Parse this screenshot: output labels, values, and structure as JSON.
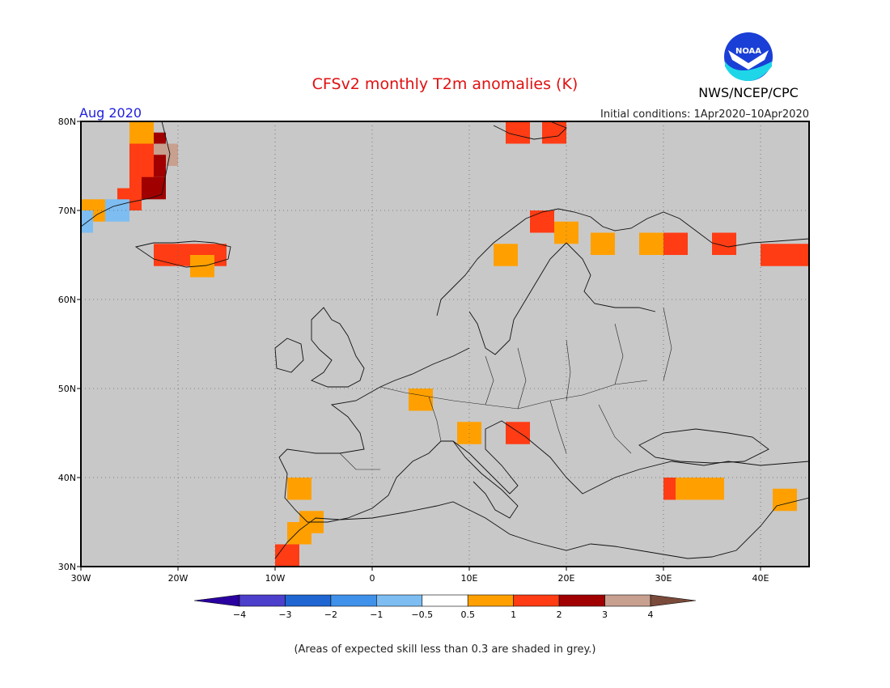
{
  "title": "CFSv2 monthly T2m anomalies (K)",
  "month": "Aug 2020",
  "initial_conditions": "Initial conditions: 1Apr2020–10Apr2020",
  "agency": "NWS/NCEP/CPC",
  "logo_text": "NOAA",
  "footnote": "(Areas of expected skill less than 0.3 are shaded in grey.)",
  "map": {
    "lon_range": [
      -30,
      45
    ],
    "lat_range": [
      30,
      80
    ],
    "skill_mask_color": "#c8c8c8",
    "lon_ticks": [
      "30W",
      "20W",
      "10W",
      "0",
      "10E",
      "20E",
      "30E",
      "40E"
    ],
    "lat_ticks": [
      "30N",
      "40N",
      "50N",
      "60N",
      "70N",
      "80N"
    ]
  },
  "colorbar": {
    "labels": [
      "−4",
      "−3",
      "−2",
      "−1",
      "−0.5",
      "0.5",
      "1",
      "2",
      "3",
      "4"
    ],
    "colors": [
      "#2a00a0",
      "#4c3fcc",
      "#1f66d2",
      "#3f91ea",
      "#7dbdf2",
      "#ffffff",
      "#ffa000",
      "#ff3c14",
      "#a00000",
      "#c8a090",
      "#7a4a3a"
    ]
  },
  "chart_data": {
    "type": "heatmap",
    "title": "CFSv2 monthly T2m anomalies (K)",
    "units": "K",
    "period": "Aug 2020",
    "grid": "2.5 degree",
    "categories": [
      "near-normal",
      "0.5–1",
      "1–2",
      "2–3",
      "3–4",
      "below −0.5"
    ],
    "cells": [
      {
        "lat": 77.5,
        "lon": -22.5,
        "cat": 3
      },
      {
        "lat": 76.25,
        "lon": -21.25,
        "cat": 4
      },
      {
        "lat": 75,
        "lon": -22.5,
        "cat": 3
      },
      {
        "lat": 76.25,
        "lon": -23.75,
        "cat": 2
      },
      {
        "lat": 73.75,
        "lon": -23.75,
        "cat": 2
      },
      {
        "lat": 72.5,
        "lon": -22.5,
        "cat": 3
      },
      {
        "lat": 71.25,
        "lon": -25,
        "cat": 2
      },
      {
        "lat": 70,
        "lon": -28.75,
        "cat": 1
      },
      {
        "lat": 78.75,
        "lon": -23.75,
        "cat": 1
      },
      {
        "lat": 70,
        "lon": -26.25,
        "cat": -1
      },
      {
        "lat": 68.75,
        "lon": -30,
        "cat": -1
      },
      {
        "lat": 65,
        "lon": -18.75,
        "cat": 2
      },
      {
        "lat": 65,
        "lon": -16.25,
        "cat": 2
      },
      {
        "lat": 65,
        "lon": -21.25,
        "cat": 2
      },
      {
        "lat": 63.75,
        "lon": -17.5,
        "cat": 1
      },
      {
        "lat": 78.75,
        "lon": 15,
        "cat": 2
      },
      {
        "lat": 78.75,
        "lon": 18.75,
        "cat": 2
      },
      {
        "lat": 68.75,
        "lon": 17.5,
        "cat": 2
      },
      {
        "lat": 67.5,
        "lon": 20,
        "cat": 1
      },
      {
        "lat": 66.25,
        "lon": 23.75,
        "cat": 1
      },
      {
        "lat": 66.25,
        "lon": 28.75,
        "cat": 1
      },
      {
        "lat": 66.25,
        "lon": 31.25,
        "cat": 2
      },
      {
        "lat": 66.25,
        "lon": 36.25,
        "cat": 2
      },
      {
        "lat": 65,
        "lon": 41.25,
        "cat": 2
      },
      {
        "lat": 65,
        "lon": 43.75,
        "cat": 2
      },
      {
        "lat": 65,
        "lon": 13.75,
        "cat": 1
      },
      {
        "lat": 48.75,
        "lon": 5,
        "cat": 1
      },
      {
        "lat": 45,
        "lon": 15,
        "cat": 2
      },
      {
        "lat": 45,
        "lon": 10,
        "cat": 1
      },
      {
        "lat": 38.75,
        "lon": 31.25,
        "cat": 2
      },
      {
        "lat": 38.75,
        "lon": 32.5,
        "cat": 1
      },
      {
        "lat": 38.75,
        "lon": 35,
        "cat": 1
      },
      {
        "lat": 37.5,
        "lon": 42.5,
        "cat": 1
      },
      {
        "lat": 38.75,
        "lon": -7.5,
        "cat": 1
      },
      {
        "lat": 35,
        "lon": -6.25,
        "cat": 1
      },
      {
        "lat": 33.75,
        "lon": -7.5,
        "cat": 1
      },
      {
        "lat": 31.25,
        "lon": -8.75,
        "cat": 2
      }
    ]
  }
}
